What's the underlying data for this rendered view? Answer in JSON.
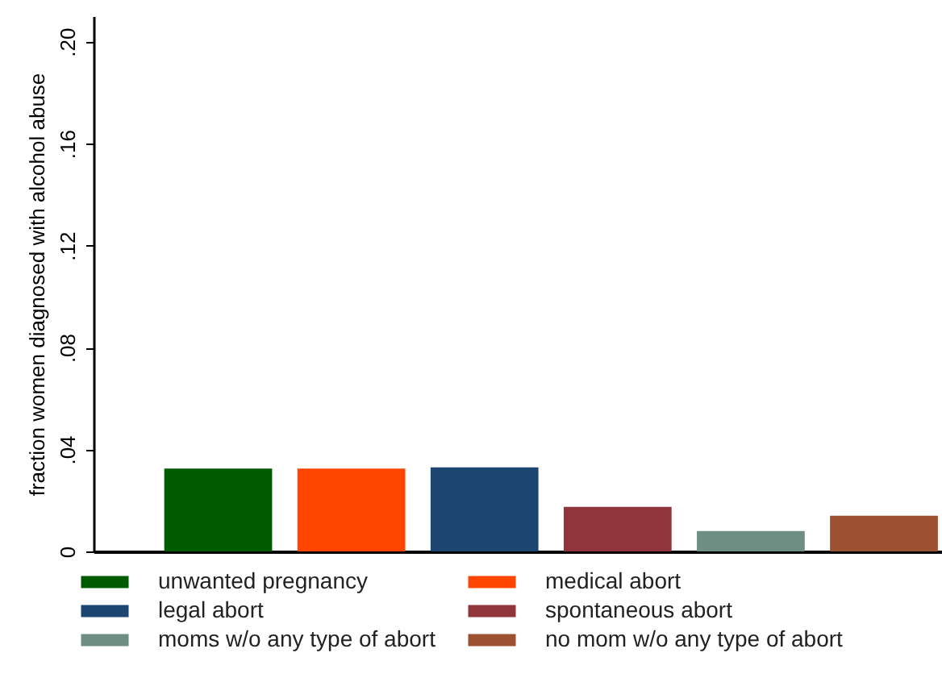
{
  "chart_data": {
    "type": "bar",
    "ylabel": "fraction women diagnosed with alcohol abuse",
    "categories": [
      null
    ],
    "series": [
      {
        "name": "unwanted pregnancy",
        "color": "#005a00",
        "values": [
          0.0325
        ]
      },
      {
        "name": "medical abort",
        "color": "#ff4500",
        "values": [
          0.0325
        ]
      },
      {
        "name": "legal abort",
        "color": "#1c466f",
        "values": [
          0.033
        ]
      },
      {
        "name": "spontaneous abort",
        "color": "#90353b",
        "values": [
          0.0175
        ]
      },
      {
        "name": "moms w/o any type of abort",
        "color": "#6e8e84",
        "values": [
          0.008
        ]
      },
      {
        "name": "no mom w/o any type of abort",
        "color": "#9c5130",
        "values": [
          0.014
        ]
      }
    ],
    "ylim": [
      0,
      0.21
    ],
    "yticks": [
      0,
      {
        "value": 0.04,
        "label": ".04"
      },
      {
        "value": 0.08,
        "label": ".08"
      },
      {
        "value": 0.12,
        "label": ".12"
      },
      {
        "value": 0.16,
        "label": ".16"
      },
      {
        "value": 0.2,
        "label": ".20"
      }
    ],
    "tick_labels": "y",
    "grid": false,
    "legend": "bottom"
  }
}
